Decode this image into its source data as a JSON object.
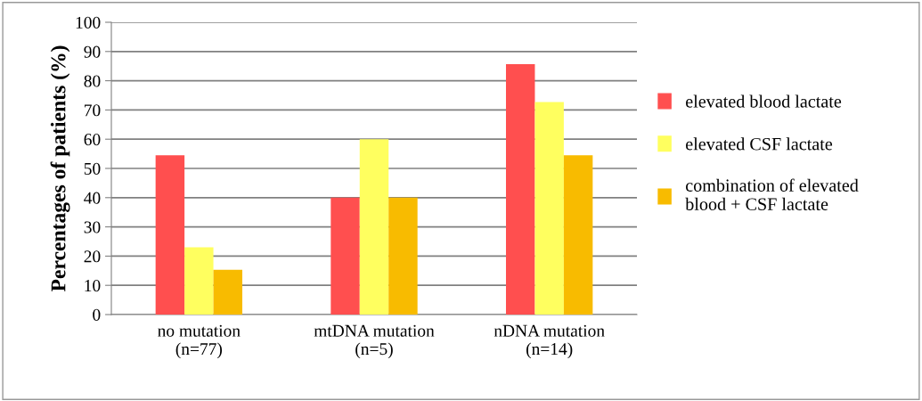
{
  "chart_data": {
    "type": "bar",
    "ylabel": "Percentages of patients (%)",
    "categories": [
      "no mutation\n(n=77)",
      "mtDNA mutation\n(n=5)",
      "nDNA mutation\n(n=14)"
    ],
    "series": [
      {
        "name": "elevated blood lactate",
        "color": "#ff4f4f",
        "values": [
          54.5,
          40,
          85.7
        ]
      },
      {
        "name": "elevated CSF lactate",
        "color": "#ffff5f",
        "values": [
          23.0,
          60,
          72.7
        ]
      },
      {
        "name": "combination of elevated\nblood + CSF lactate",
        "color": "#f8bb00",
        "values": [
          15.3,
          40,
          54.5
        ]
      }
    ],
    "ylim": [
      0,
      100
    ],
    "yticks": [
      0,
      10,
      20,
      30,
      40,
      50,
      60,
      70,
      80,
      90,
      100
    ],
    "grid": "y",
    "legend": "right"
  }
}
